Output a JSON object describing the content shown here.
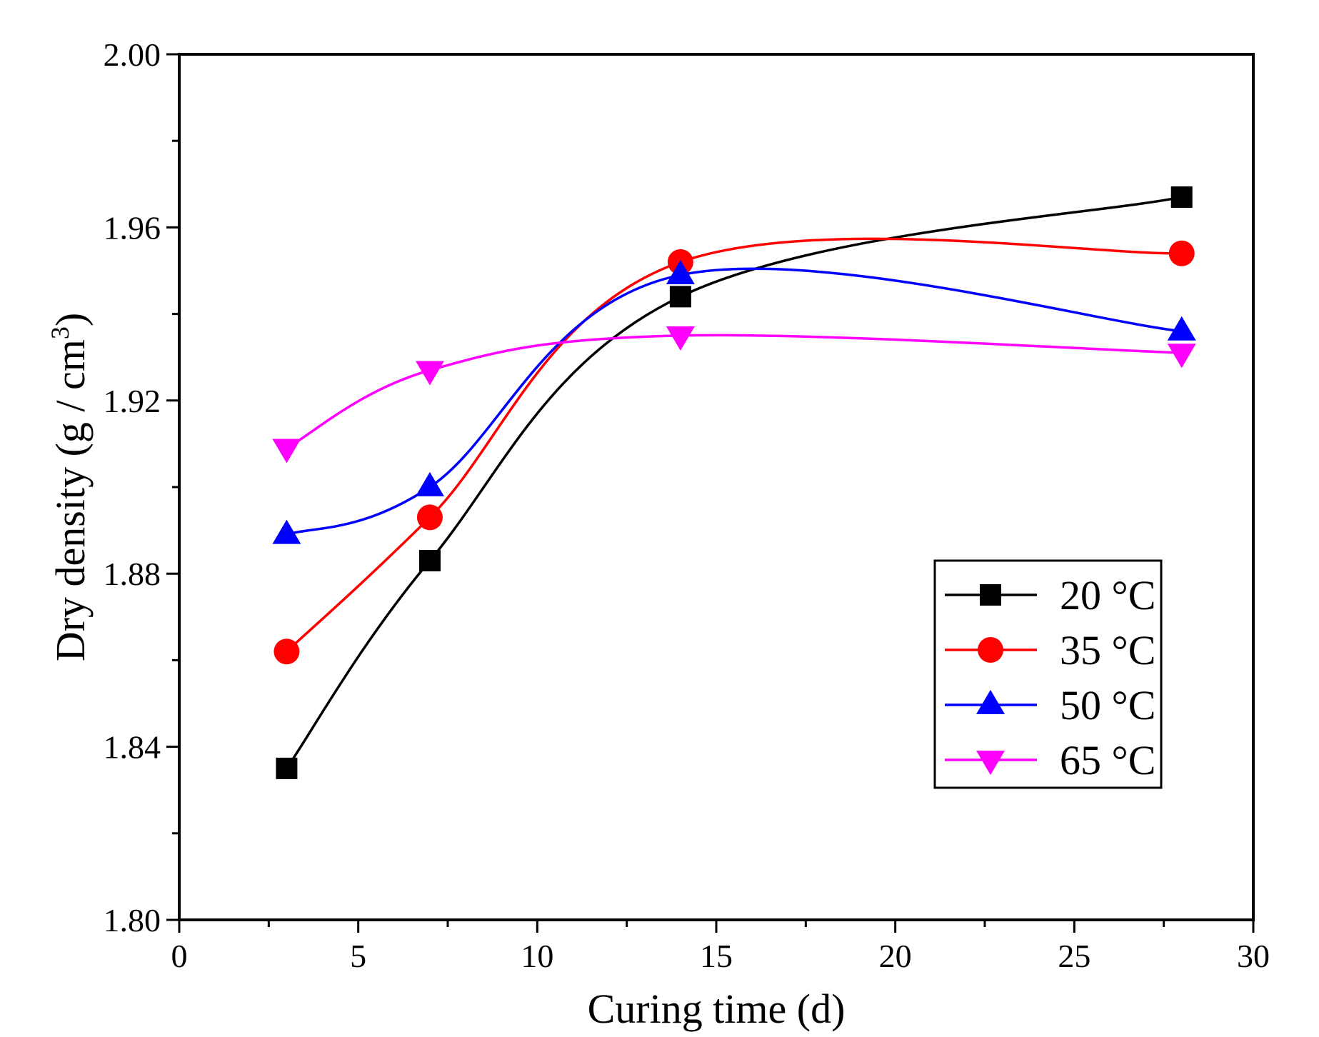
{
  "chart_data": {
    "type": "line",
    "title": "",
    "xlabel": "Curing time (d)",
    "ylabel_main": "Dry density (g / cm",
    "ylabel_sup": "3",
    "ylabel_close": ")",
    "xlim": [
      0,
      30
    ],
    "ylim": [
      1.8,
      2.0
    ],
    "xticks": [
      0,
      5,
      10,
      15,
      20,
      25,
      30
    ],
    "xtick_labels": [
      "0",
      "5",
      "10",
      "15",
      "20",
      "25",
      "30"
    ],
    "yticks": [
      1.8,
      1.84,
      1.88,
      1.92,
      1.96,
      2.0
    ],
    "ytick_labels": [
      "1.80",
      "1.84",
      "1.88",
      "1.92",
      "1.96",
      "2.00"
    ],
    "x_minor_step": 2.5,
    "y_minor_step": 0.02,
    "legend_position": "lower-right",
    "x": [
      3,
      7,
      14,
      28
    ],
    "series": [
      {
        "name": "20 °C",
        "marker": "square",
        "color": "#000000",
        "values": [
          1.835,
          1.883,
          1.944,
          1.967
        ]
      },
      {
        "name": "35 °C",
        "marker": "circle",
        "color": "#ff0000",
        "values": [
          1.862,
          1.893,
          1.952,
          1.954
        ]
      },
      {
        "name": "50 °C",
        "marker": "triangle-up",
        "color": "#0000ff",
        "values": [
          1.889,
          1.9,
          1.949,
          1.936
        ]
      },
      {
        "name": "65 °C",
        "marker": "triangle-down",
        "color": "#ff00ff",
        "values": [
          1.909,
          1.927,
          1.935,
          1.931
        ]
      }
    ]
  }
}
